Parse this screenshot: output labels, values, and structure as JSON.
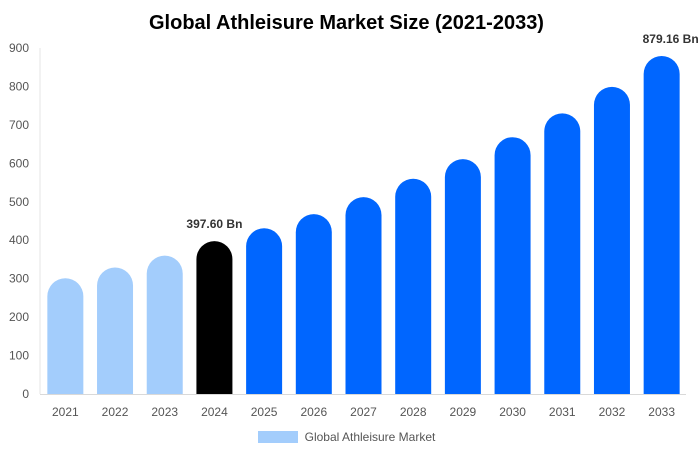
{
  "chart_data": {
    "type": "bar",
    "title": "Global Athleisure Market Size (2021-2033)",
    "categories": [
      "2021",
      "2022",
      "2023",
      "2024",
      "2025",
      "2026",
      "2027",
      "2028",
      "2029",
      "2030",
      "2031",
      "2032",
      "2033"
    ],
    "series": [
      {
        "name": "Global Athleisure Market",
        "values": [
          301,
          329,
          360,
          397.6,
          431,
          468,
          512,
          560,
          611,
          668,
          730,
          799,
          879.16
        ]
      }
    ],
    "ylim": [
      0,
      900
    ],
    "yticks": [
      0,
      100,
      200,
      300,
      400,
      500,
      600,
      700,
      800,
      900
    ],
    "data_labels": [
      {
        "index": 3,
        "text": "397.60 Bn"
      },
      {
        "index": 12,
        "text": "879.16 Bn"
      }
    ],
    "colors": {
      "historical": "#a3cdfc",
      "base_year": "#000000",
      "forecast": "#0066ff"
    },
    "legend_position": "bottom-center",
    "grid": false
  }
}
